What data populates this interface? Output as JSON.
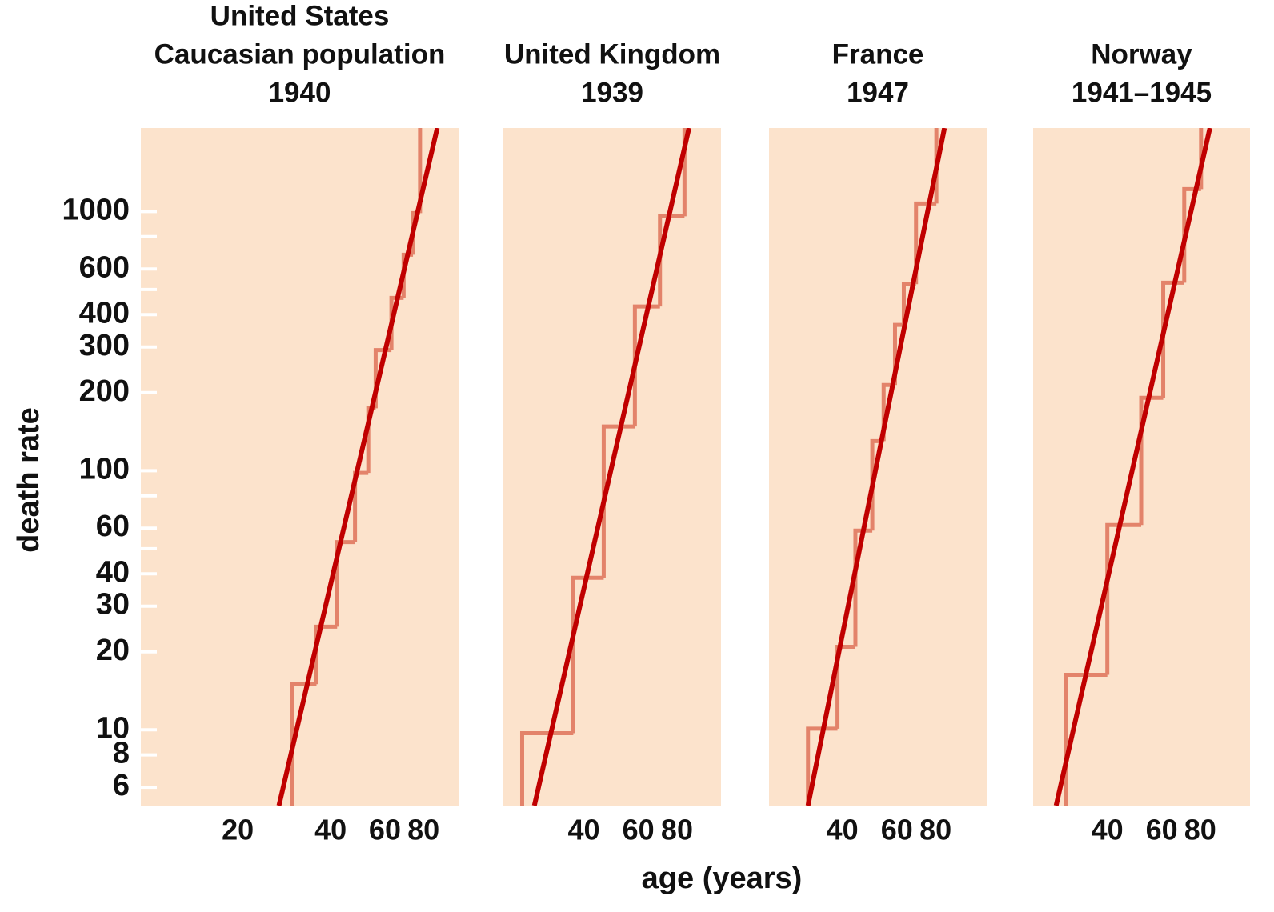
{
  "chart_data": {
    "type": "step-log",
    "ylabel": "death rate",
    "xlabel": "age (years)",
    "ylog": true,
    "xlog": true,
    "ylim": [
      5.1,
      2100
    ],
    "yticks": [
      6,
      8,
      10,
      20,
      30,
      40,
      60,
      100,
      200,
      300,
      400,
      600,
      1000
    ],
    "yminor": [
      50,
      80,
      500,
      800
    ],
    "background": "#fce3cc",
    "step_color": "#e3836a",
    "fit_color": "#c00000",
    "panels": [
      {
        "title": [
          "United States",
          "Caucasian population",
          "1940"
        ],
        "xlim": [
          9.7,
          104
        ],
        "xticks": [
          20,
          40,
          60,
          80
        ],
        "bins": [
          30,
          36,
          42,
          48,
          53,
          56,
          63,
          69,
          74,
          78
        ],
        "values": [
          15,
          25,
          53,
          98,
          174,
          292,
          464,
          681,
          986
        ],
        "fit": {
          "x": [
            27.2,
            88.7
          ],
          "y": [
            5.1,
            2100
          ]
        }
      },
      {
        "title": [
          "United Kingdom",
          "1939"
        ],
        "xlim": [
          22,
          111
        ],
        "xticks": [
          40,
          60,
          80
        ],
        "bins": [
          25.3,
          37,
          46.4,
          58.5,
          70.5,
          84.6
        ],
        "values": [
          9.7,
          38.6,
          148,
          430,
          958
        ],
        "fit": {
          "x": [
            27.7,
            87.5
          ],
          "y": [
            5.1,
            2100
          ]
        }
      },
      {
        "title": [
          "France",
          "1947"
        ],
        "xlim": [
          23.2,
          117
        ],
        "xticks": [
          40,
          60,
          80
        ],
        "bins": [
          31,
          38.6,
          44.1,
          50,
          54.4,
          59.2,
          63.2,
          69.2,
          80.5
        ],
        "values": [
          10.1,
          20.9,
          58.7,
          130,
          214,
          365,
          524,
          1074
        ],
        "fit": {
          "x": [
            31,
            85.5
          ],
          "y": [
            5.1,
            2100
          ]
        }
      },
      {
        "title": [
          "Norway",
          "1941–1945"
        ],
        "xlim": [
          23,
          116
        ],
        "xticks": [
          40,
          60,
          80
        ],
        "bins": [
          29.4,
          40,
          51.5,
          60.7,
          71,
          80.5
        ],
        "values": [
          16.3,
          61.7,
          191,
          531,
          1220
        ],
        "fit": {
          "x": [
            27.3,
            86
          ],
          "y": [
            5.1,
            2100
          ]
        }
      }
    ]
  }
}
